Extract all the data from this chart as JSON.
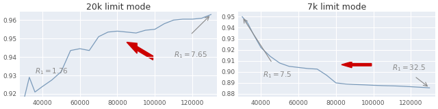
{
  "left_title": "20k limit mode",
  "right_title": "7k limit mode",
  "left_x": [
    30000,
    33000,
    36000,
    40000,
    45000,
    50000,
    55000,
    60000,
    65000,
    70000,
    75000,
    80000,
    85000,
    90000,
    95000,
    100000,
    105000,
    110000,
    115000,
    120000,
    125000,
    130000
  ],
  "left_y": [
    0.9165,
    0.929,
    0.921,
    0.924,
    0.9275,
    0.932,
    0.9435,
    0.9445,
    0.9435,
    0.951,
    0.9535,
    0.954,
    0.9535,
    0.953,
    0.9545,
    0.955,
    0.958,
    0.96,
    0.9605,
    0.9605,
    0.961,
    0.963
  ],
  "right_x": [
    30000,
    33000,
    36000,
    40000,
    45000,
    50000,
    55000,
    60000,
    65000,
    70000,
    75000,
    80000,
    85000,
    90000,
    95000,
    100000,
    105000,
    110000,
    115000,
    120000,
    125000,
    130000
  ],
  "right_y": [
    0.95,
    0.944,
    0.934,
    0.922,
    0.914,
    0.908,
    0.905,
    0.904,
    0.903,
    0.9025,
    0.897,
    0.89,
    0.889,
    0.8885,
    0.8882,
    0.8878,
    0.8875,
    0.8873,
    0.887,
    0.8865,
    0.886,
    0.8855
  ],
  "left_ylim": [
    0.9185,
    0.9645
  ],
  "right_ylim": [
    0.8775,
    0.9545
  ],
  "left_yticks": [
    0.92,
    0.93,
    0.94,
    0.95,
    0.96
  ],
  "right_yticks": [
    0.88,
    0.89,
    0.9,
    0.91,
    0.92,
    0.93,
    0.94,
    0.95
  ],
  "xticks": [
    40000,
    60000,
    80000,
    100000,
    120000
  ],
  "line_color": "#7a9aba",
  "bg_color": "#e8edf4",
  "arrow_color": "#cc0000",
  "annot_color": "#888888",
  "title_fontsize": 9,
  "tick_fontsize": 6.5,
  "annot_fontsize": 7.5
}
